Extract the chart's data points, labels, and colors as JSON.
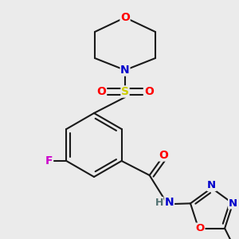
{
  "bg_color": "#ebebeb",
  "bond_color": "#1a1a1a",
  "bond_width": 1.5,
  "atom_colors": {
    "O": "#ff0000",
    "N": "#0000cc",
    "S": "#cccc00",
    "F": "#cc00cc",
    "C": "#1a1a1a",
    "H": "#507070"
  },
  "fig_width": 3.0,
  "fig_height": 3.0,
  "dpi": 100
}
